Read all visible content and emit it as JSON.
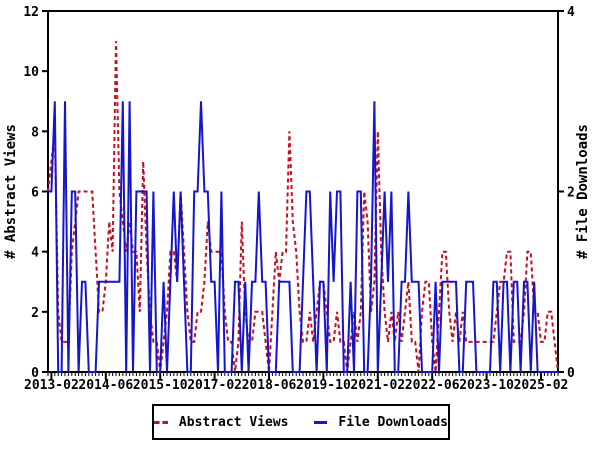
{
  "chart_data": {
    "type": "line",
    "title": "",
    "x_axis": {
      "start_month": "2013-01",
      "end_month": "2025-07",
      "tick_labels": [
        "2013-02",
        "2014-06",
        "2015-10",
        "2017-02",
        "2018-06",
        "2019-10",
        "2021-02",
        "2022-06",
        "2023-10",
        "2025-02"
      ],
      "tick_interval_months": 16,
      "minor_tick_interval_months": 1
    },
    "left_axis": {
      "label": "# Abstract Views",
      "min": 0,
      "max": 12,
      "tick_labels": [
        "0",
        "2",
        "4",
        "6",
        "8",
        "10",
        "12"
      ]
    },
    "right_axis": {
      "label": "# File Downloads",
      "min": 0,
      "max": 4,
      "tick_labels": [
        "0",
        "2",
        "4"
      ]
    },
    "grid": false,
    "legend_position": "bottom-center",
    "series": [
      {
        "name": "Abstract Views",
        "axis": "left",
        "color": "#c41023",
        "style": "dashed",
        "values": [
          6,
          7,
          8,
          2,
          1,
          1,
          1,
          4,
          5,
          6,
          6,
          6,
          6,
          6,
          4,
          2,
          2,
          3,
          5,
          4,
          11,
          6,
          5,
          4,
          5,
          4,
          4,
          2,
          7,
          4,
          2,
          1,
          1,
          0,
          1,
          2,
          4,
          4,
          3,
          6,
          4,
          2,
          1,
          1,
          2,
          2,
          3,
          5,
          4,
          4,
          4,
          4,
          2,
          1,
          1,
          0,
          1,
          5,
          2,
          1,
          1,
          2,
          2,
          2,
          1,
          0,
          2,
          4,
          3,
          4,
          4,
          8,
          5,
          4,
          2,
          1,
          1,
          2,
          1,
          2,
          3,
          3,
          2,
          1,
          1,
          2,
          1,
          1,
          0,
          1,
          2,
          1,
          2,
          6,
          5,
          2,
          3,
          8,
          4,
          2,
          1,
          2,
          1,
          2,
          1,
          2,
          3,
          1,
          1,
          0,
          2,
          3,
          3,
          1,
          0,
          2,
          4,
          4,
          2,
          1,
          2,
          1,
          2,
          1,
          1,
          1,
          1,
          1,
          1,
          1,
          1,
          1,
          2,
          3,
          3,
          4,
          4,
          1,
          1,
          1,
          2,
          4,
          4,
          2,
          2,
          1,
          1,
          2,
          2,
          1,
          0
        ]
      },
      {
        "name": "File Downloads",
        "axis": "right",
        "color": "#1515cb",
        "style": "solid",
        "values": [
          2,
          2,
          3,
          0,
          0,
          3,
          0,
          2,
          2,
          0,
          1,
          1,
          0,
          0,
          0,
          1,
          1,
          1,
          1,
          1,
          1,
          1,
          3,
          0,
          3,
          0,
          2,
          2,
          2,
          2,
          0,
          2,
          0,
          0,
          1,
          0,
          1,
          2,
          1,
          2,
          1,
          0,
          0,
          2,
          2,
          3,
          2,
          2,
          1,
          1,
          0,
          2,
          0,
          0,
          0,
          1,
          1,
          0,
          1,
          0,
          1,
          1,
          2,
          1,
          1,
          0,
          0,
          0,
          1,
          1,
          1,
          1,
          0,
          0,
          0,
          1,
          2,
          2,
          1,
          0,
          1,
          1,
          0,
          2,
          1,
          2,
          2,
          0,
          0,
          1,
          0,
          2,
          2,
          0,
          0,
          1,
          3,
          0,
          1,
          2,
          1,
          2,
          0,
          0,
          1,
          1,
          2,
          1,
          1,
          1,
          0,
          0,
          0,
          0,
          1,
          0,
          1,
          1,
          1,
          1,
          1,
          0,
          0,
          1,
          1,
          1,
          0,
          0,
          0,
          0,
          0,
          1,
          1,
          0,
          1,
          1,
          0,
          1,
          1,
          0,
          1,
          1,
          0,
          1,
          0,
          0,
          0,
          0,
          0,
          0,
          0
        ]
      }
    ]
  },
  "legend": {
    "abstract_views_label": "Abstract Views",
    "file_downloads_label": "File Downloads"
  }
}
